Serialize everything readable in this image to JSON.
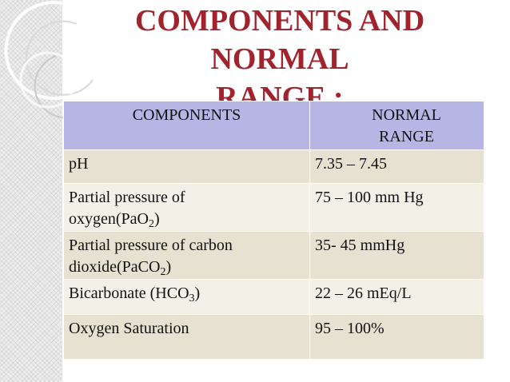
{
  "slide": {
    "title_line1": "COMPONENTS AND NORMAL",
    "title_line2": "RANGE :",
    "title_color": "#a0232d"
  },
  "table": {
    "headers": [
      "COMPONENTS",
      "NORMAL",
      "RANGE"
    ],
    "rows": [
      {
        "component": "pH",
        "range": "7.35 – 7.45"
      },
      {
        "component": "Partial pressure of",
        "component_line2": "oxygen(PaO",
        "sub": "2",
        "tail": ")",
        "range": "75 – 100 mm Hg"
      },
      {
        "component": "Partial pressure of carbon",
        "component_line2": "dioxide(PaCO",
        "sub": "2",
        "tail": ")",
        "range": "35- 45 mmHg"
      },
      {
        "component": "Bicarbonate (HCO",
        "sub": "3",
        "tail": ")",
        "range": "22 – 26 mEq/L"
      },
      {
        "component": "Oxygen Saturation",
        "range": "95 – 100%"
      }
    ],
    "header_color": "#b7b5e3",
    "row_color_dark": "#e7e1d1",
    "row_color_light": "#f3f0e7"
  }
}
